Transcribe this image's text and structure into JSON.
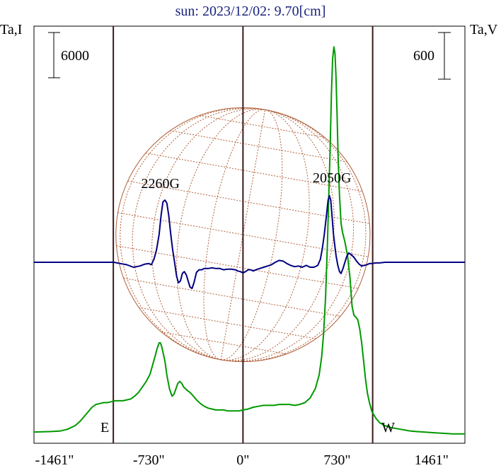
{
  "chart_data": {
    "type": "line",
    "title": "sun: 2023/12/02: 9.70[cm]",
    "left_axis_label": "Ta,I",
    "right_axis_label": "Ta,V",
    "left_scale_label": "6000",
    "right_scale_label": "600",
    "x_ticks": [
      "-1461\"",
      "-730\"",
      "0\"",
      "730\"",
      "1461\""
    ],
    "x_tick_values": [
      -1461,
      -730,
      0,
      730,
      1461
    ],
    "xlim": [
      -1620,
      1720
    ],
    "limb_markers": [
      {
        "label": "E",
        "x": -1005
      },
      {
        "label": "W",
        "x": 1005
      }
    ],
    "annotations": [
      {
        "text": "2260G",
        "x": -640
      },
      {
        "text": "2050G",
        "x": 690
      }
    ],
    "disk": {
      "center_x": 0,
      "radius_arcsec": 985,
      "color": "#b0603a"
    },
    "grid": false,
    "series": [
      {
        "key": "intensity",
        "color": "#009900",
        "x": [
          -1620,
          -1500,
          -1420,
          -1360,
          -1300,
          -1260,
          -1230,
          -1200,
          -1170,
          -1140,
          -1110,
          -1080,
          -1050,
          -1020,
          -990,
          -960,
          -930,
          -900,
          -870,
          -840,
          -810,
          -780,
          -750,
          -720,
          -700,
          -680,
          -665,
          -650,
          -640,
          -630,
          -620,
          -605,
          -590,
          -570,
          -550,
          -535,
          -520,
          -505,
          -490,
          -475,
          -460,
          -445,
          -430,
          -410,
          -390,
          -360,
          -330,
          -300,
          -270,
          -240,
          -210,
          -180,
          -150,
          -120,
          -90,
          -60,
          -30,
          0,
          40,
          80,
          120,
          160,
          200,
          240,
          280,
          320,
          360,
          400,
          440,
          480,
          520,
          560,
          590,
          610,
          625,
          640,
          655,
          665,
          675,
          685,
          695,
          705,
          713,
          721,
          729,
          738,
          748,
          760,
          772,
          790,
          810,
          830,
          845,
          860,
          875,
          890,
          905,
          920,
          935,
          950,
          965,
          980,
          1000,
          1030,
          1060,
          1100,
          1140,
          1180,
          1220,
          1260,
          1300,
          1350,
          1400,
          1450,
          1500,
          1560,
          1620,
          1720
        ],
        "y": [
          0.03,
          0.035,
          0.04,
          0.06,
          0.1,
          0.15,
          0.2,
          0.25,
          0.3,
          0.33,
          0.34,
          0.35,
          0.35,
          0.36,
          0.37,
          0.37,
          0.37,
          0.38,
          0.39,
          0.42,
          0.46,
          0.52,
          0.58,
          0.66,
          0.76,
          0.86,
          0.94,
          1.0,
          1.0,
          0.96,
          0.9,
          0.8,
          0.65,
          0.5,
          0.42,
          0.44,
          0.5,
          0.56,
          0.58,
          0.56,
          0.52,
          0.5,
          0.48,
          0.46,
          0.43,
          0.38,
          0.34,
          0.31,
          0.29,
          0.28,
          0.27,
          0.27,
          0.27,
          0.26,
          0.26,
          0.26,
          0.26,
          0.27,
          0.28,
          0.3,
          0.31,
          0.32,
          0.32,
          0.32,
          0.33,
          0.33,
          0.33,
          0.32,
          0.33,
          0.35,
          0.4,
          0.5,
          0.65,
          0.85,
          1.1,
          1.5,
          2.1,
          2.6,
          3.1,
          3.7,
          4.1,
          4.22,
          4.15,
          3.9,
          3.5,
          3.0,
          2.6,
          2.3,
          2.2,
          2.1,
          1.95,
          1.7,
          1.4,
          1.3,
          1.28,
          1.25,
          1.15,
          1.0,
          0.8,
          0.6,
          0.45,
          0.35,
          0.25,
          0.18,
          0.13,
          0.1,
          0.08,
          0.07,
          0.06,
          0.05,
          0.04,
          0.035,
          0.03,
          0.025,
          0.02,
          0.015,
          0.01,
          0.01
        ]
      },
      {
        "key": "polarization",
        "color": "#000080",
        "x": [
          -1620,
          -1500,
          -1400,
          -1300,
          -1200,
          -1100,
          -1000,
          -950,
          -900,
          -850,
          -800,
          -760,
          -730,
          -710,
          -690,
          -670,
          -650,
          -635,
          -620,
          -605,
          -590,
          -575,
          -560,
          -545,
          -530,
          -515,
          -500,
          -485,
          -470,
          -455,
          -440,
          -425,
          -410,
          -395,
          -380,
          -360,
          -340,
          -320,
          -300,
          -270,
          -240,
          -210,
          -180,
          -150,
          -120,
          -90,
          -60,
          -40,
          -20,
          0,
          20,
          40,
          60,
          80,
          100,
          130,
          160,
          190,
          220,
          250,
          280,
          310,
          340,
          370,
          400,
          430,
          460,
          490,
          520,
          550,
          580,
          600,
          615,
          630,
          645,
          660,
          670,
          680,
          690,
          700,
          710,
          722,
          735,
          748,
          760,
          775,
          790,
          805,
          820,
          840,
          860,
          880,
          900,
          920,
          940,
          960,
          980,
          1000,
          1030,
          1060,
          1100,
          1200,
          1300,
          1400,
          1500,
          1620,
          1720
        ],
        "y": [
          0.0,
          0.0,
          0.0,
          0.0,
          0.0,
          0.0,
          0.0,
          -0.02,
          -0.04,
          -0.08,
          -0.06,
          -0.03,
          -0.02,
          -0.04,
          0.05,
          0.2,
          0.45,
          0.75,
          0.97,
          1.0,
          0.95,
          0.75,
          0.45,
          0.2,
          0.0,
          -0.22,
          -0.33,
          -0.3,
          -0.18,
          -0.15,
          -0.2,
          -0.3,
          -0.4,
          -0.42,
          -0.33,
          -0.16,
          -0.12,
          -0.12,
          -0.1,
          -0.1,
          -0.09,
          -0.1,
          -0.1,
          -0.12,
          -0.11,
          -0.11,
          -0.12,
          -0.14,
          -0.15,
          -0.17,
          -0.15,
          -0.12,
          -0.12,
          -0.14,
          -0.12,
          -0.1,
          -0.08,
          -0.06,
          -0.04,
          0.0,
          0.03,
          0.02,
          -0.02,
          -0.05,
          -0.07,
          -0.06,
          -0.08,
          -0.05,
          -0.08,
          -0.08,
          -0.05,
          0.05,
          0.22,
          0.45,
          0.72,
          1.0,
          1.07,
          1.0,
          0.75,
          0.48,
          0.3,
          0.1,
          -0.05,
          -0.15,
          -0.18,
          -0.1,
          0.0,
          0.1,
          0.15,
          0.12,
          0.08,
          0.02,
          -0.03,
          -0.06,
          -0.05,
          -0.04,
          -0.02,
          -0.02,
          -0.01,
          -0.01,
          0.0,
          0.0,
          0.0,
          0.0,
          0.0,
          0.0,
          0.0
        ]
      }
    ]
  }
}
